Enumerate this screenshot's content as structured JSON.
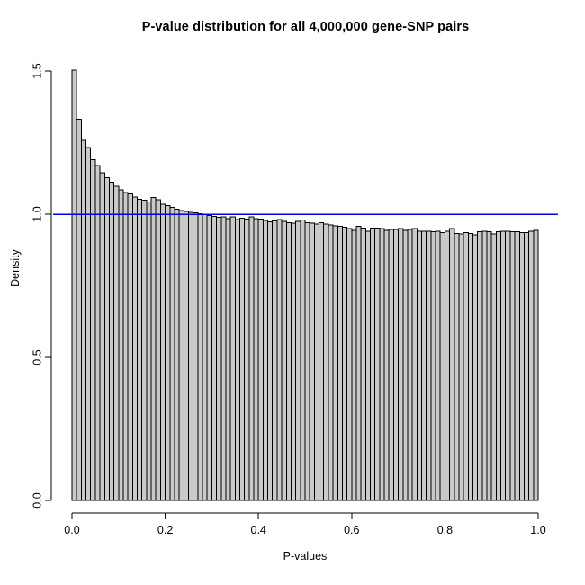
{
  "page": {
    "background": "#ffffff",
    "text_color": "#000000"
  },
  "chart_data": {
    "type": "bar",
    "subtype": "histogram",
    "title": "P-value distribution for all 4,000,000 gene-SNP pairs",
    "xlabel": "P-values",
    "ylabel": "Density",
    "grid": false,
    "legend_position": "none",
    "x_range": [
      0,
      1
    ],
    "ylim": [
      0,
      1.5
    ],
    "bin_width": 0.01,
    "x_ticks": [
      0.0,
      0.2,
      0.4,
      0.6,
      0.8,
      1.0
    ],
    "x_tick_labels": [
      "0.0",
      "0.2",
      "0.4",
      "0.6",
      "0.8",
      "1.0"
    ],
    "y_ticks": [
      0.0,
      0.5,
      1.0,
      1.5
    ],
    "y_tick_labels": [
      "0.0",
      "0.5",
      "1.0",
      "1.5"
    ],
    "bar_fill": "#c9c9c9",
    "bar_stroke": "#000000",
    "axis_color": "#000000",
    "reference_line": {
      "y": 1.0,
      "color": "#0000e0"
    },
    "densities": [
      1.503,
      1.331,
      1.258,
      1.232,
      1.191,
      1.17,
      1.144,
      1.128,
      1.112,
      1.098,
      1.085,
      1.076,
      1.071,
      1.059,
      1.052,
      1.048,
      1.042,
      1.058,
      1.05,
      1.035,
      1.03,
      1.024,
      1.017,
      1.012,
      1.009,
      1.007,
      1.004,
      1.001,
      0.998,
      0.995,
      0.992,
      0.989,
      0.99,
      0.985,
      0.991,
      0.981,
      0.986,
      0.983,
      0.991,
      0.985,
      0.983,
      0.978,
      0.973,
      0.976,
      0.981,
      0.975,
      0.97,
      0.968,
      0.975,
      0.98,
      0.97,
      0.968,
      0.966,
      0.97,
      0.965,
      0.962,
      0.959,
      0.957,
      0.955,
      0.949,
      0.944,
      0.957,
      0.952,
      0.941,
      0.951,
      0.952,
      0.949,
      0.943,
      0.947,
      0.947,
      0.949,
      0.943,
      0.947,
      0.949,
      0.941,
      0.94,
      0.941,
      0.939,
      0.941,
      0.936,
      0.941,
      0.949,
      0.933,
      0.931,
      0.936,
      0.933,
      0.928,
      0.939,
      0.941,
      0.939,
      0.931,
      0.938,
      0.941,
      0.941,
      0.939,
      0.938,
      0.936,
      0.936,
      0.941,
      0.943
    ]
  }
}
